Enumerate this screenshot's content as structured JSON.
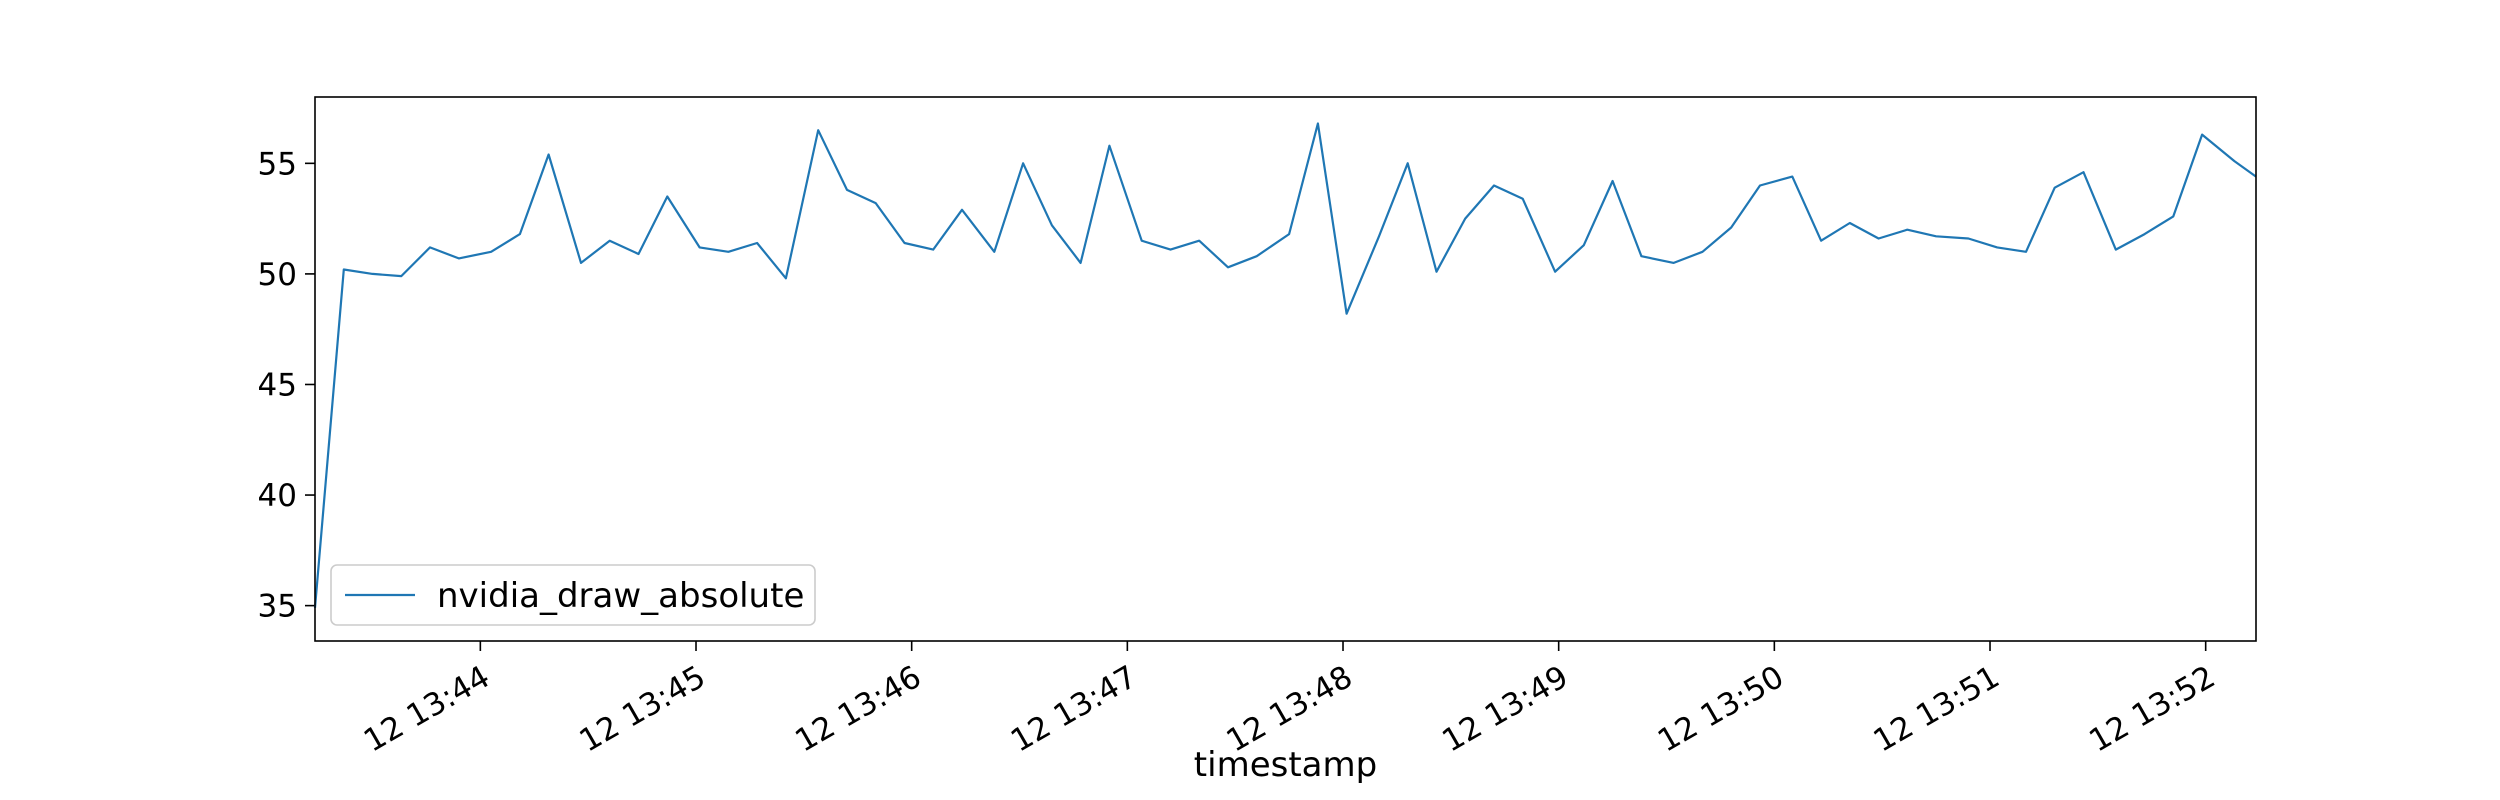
{
  "chart_data": {
    "type": "line",
    "title": "",
    "xlabel": "timestamp",
    "ylabel": "",
    "x_range": [
      "12 13:43:14",
      "12 13:52:14"
    ],
    "ylim": [
      33.4,
      58.0
    ],
    "x_ticks": [
      {
        "t": "12 13:44:00",
        "label": "12 13:44"
      },
      {
        "t": "12 13:45:00",
        "label": "12 13:45"
      },
      {
        "t": "12 13:46:00",
        "label": "12 13:46"
      },
      {
        "t": "12 13:47:00",
        "label": "12 13:47"
      },
      {
        "t": "12 13:48:00",
        "label": "12 13:48"
      },
      {
        "t": "12 13:49:00",
        "label": "12 13:49"
      },
      {
        "t": "12 13:50:00",
        "label": "12 13:50"
      },
      {
        "t": "12 13:51:00",
        "label": "12 13:51"
      },
      {
        "t": "12 13:52:00",
        "label": "12 13:52"
      }
    ],
    "y_ticks": [
      {
        "v": 35,
        "label": "35"
      },
      {
        "v": 40,
        "label": "40"
      },
      {
        "v": 45,
        "label": "45"
      },
      {
        "v": 50,
        "label": "50"
      },
      {
        "v": 55,
        "label": "55"
      }
    ],
    "grid": false,
    "legend_position": "lower-left",
    "series": [
      {
        "name": "nvidia_draw_absolute",
        "color": "#1f77b4",
        "x": [
          "12 13:43:14",
          "12 13:43:22",
          "12 13:43:30",
          "12 13:43:38",
          "12 13:43:46",
          "12 13:43:54",
          "12 13:44:03",
          "12 13:44:11",
          "12 13:44:19",
          "12 13:44:28",
          "12 13:44:36",
          "12 13:44:44",
          "12 13:44:52",
          "12 13:45:01",
          "12 13:45:09",
          "12 13:45:17",
          "12 13:45:25",
          "12 13:45:34",
          "12 13:45:42",
          "12 13:45:50",
          "12 13:45:58",
          "12 13:46:06",
          "12 13:46:14",
          "12 13:46:23",
          "12 13:46:31",
          "12 13:46:39",
          "12 13:46:47",
          "12 13:46:55",
          "12 13:47:04",
          "12 13:47:12",
          "12 13:47:20",
          "12 13:47:28",
          "12 13:47:36",
          "12 13:47:45",
          "12 13:47:53",
          "12 13:48:01",
          "12 13:48:10",
          "12 13:48:18",
          "12 13:48:26",
          "12 13:48:34",
          "12 13:48:42",
          "12 13:48:50",
          "12 13:48:59",
          "12 13:49:07",
          "12 13:49:15",
          "12 13:49:23",
          "12 13:49:32",
          "12 13:49:40",
          "12 13:49:48",
          "12 13:49:56",
          "12 13:50:05",
          "12 13:50:13",
          "12 13:50:21",
          "12 13:50:29",
          "12 13:50:37",
          "12 13:50:45",
          "12 13:50:54",
          "12 13:51:02",
          "12 13:51:10",
          "12 13:51:18",
          "12 13:51:26",
          "12 13:51:35",
          "12 13:51:43",
          "12 13:51:51",
          "12 13:51:59",
          "12 13:52:08",
          "12 13:52:14"
        ],
        "y": [
          34.9,
          50.2,
          50.0,
          49.9,
          51.2,
          50.7,
          51.0,
          51.8,
          55.4,
          50.5,
          51.5,
          50.9,
          53.5,
          51.2,
          51.0,
          51.4,
          49.8,
          56.5,
          53.8,
          53.2,
          51.4,
          51.1,
          52.9,
          51.0,
          55.0,
          52.2,
          50.5,
          55.8,
          51.5,
          51.1,
          51.5,
          50.3,
          50.8,
          51.8,
          56.8,
          48.2,
          51.7,
          55.0,
          50.1,
          52.5,
          54.0,
          53.4,
          50.1,
          51.3,
          54.2,
          50.8,
          50.5,
          51.0,
          52.1,
          54.0,
          54.4,
          51.5,
          52.3,
          51.6,
          52.0,
          51.7,
          51.6,
          51.2,
          51.0,
          53.9,
          54.6,
          51.1,
          51.8,
          52.6,
          56.3,
          55.1,
          54.4
        ]
      }
    ]
  }
}
